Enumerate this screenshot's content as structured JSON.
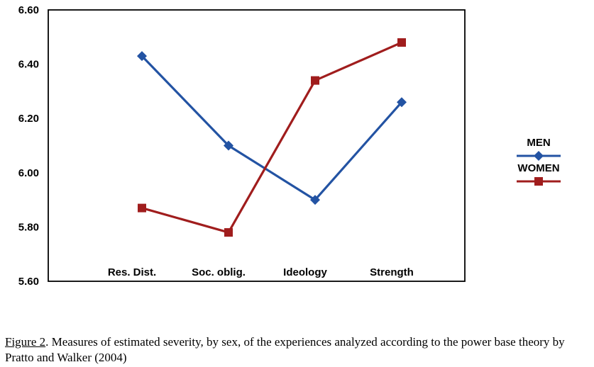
{
  "chart_data": {
    "type": "line",
    "title": "",
    "xlabel": "",
    "ylabel": "",
    "categories": [
      "Res. Dist.",
      "Soc. oblig.",
      "Ideology",
      "Strength"
    ],
    "series": [
      {
        "name": "MEN",
        "color": "#2353a3",
        "marker": "diamond",
        "values": [
          6.43,
          6.1,
          5.9,
          6.26
        ]
      },
      {
        "name": "WOMEN",
        "color": "#a01d1d",
        "marker": "square",
        "values": [
          5.87,
          5.78,
          6.34,
          6.48
        ]
      }
    ],
    "ylim": [
      5.6,
      6.6
    ],
    "y_ticks": [
      6.6,
      6.4,
      6.2,
      6.0,
      5.8,
      5.6
    ],
    "y_tick_labels": [
      "6.60",
      "6.40",
      "6.20",
      "6.00",
      "5.80",
      "5.60"
    ],
    "grid": false,
    "legend_position": "right",
    "plot_border_color": "#000000"
  },
  "caption": {
    "label": "Figure 2",
    "text": ". Measures of estimated severity, by sex, of the experiences analyzed according to the power base theory by Pratto and Walker (2004)"
  }
}
